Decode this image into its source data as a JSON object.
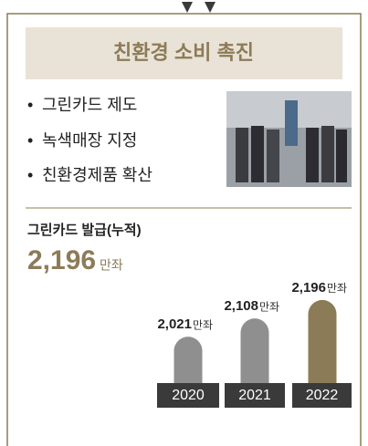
{
  "banner": "친환경 소비 촉진",
  "bullets": [
    "그린카드 제도",
    "녹색매장 지정",
    "친환경제품 확산"
  ],
  "chart_data": {
    "type": "bar",
    "title": "그린카드 발급(누적)",
    "headline": "2,196",
    "unit": "만좌",
    "categories": [
      "2020",
      "2021",
      "2022"
    ],
    "values": [
      2021,
      2108,
      2196
    ],
    "value_labels": [
      "2,021",
      "2,108",
      "2,196"
    ],
    "colors": [
      "#8f8f8f",
      "#8f8f8f",
      "#8c7b57"
    ]
  }
}
